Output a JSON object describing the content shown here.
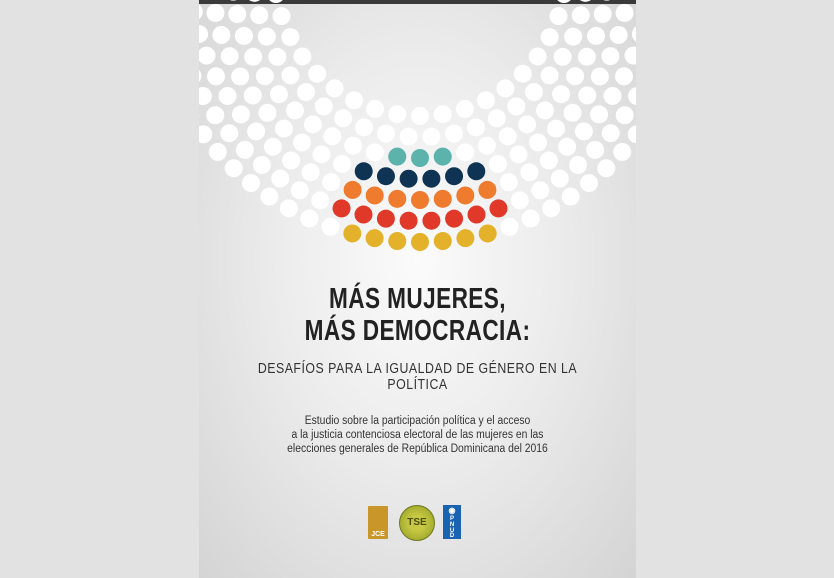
{
  "cover": {
    "title_line1": "MÁS MUJERES,",
    "title_line2": "MÁS DEMOCRACIA:",
    "subtitle": "DESAFÍOS PARA LA IGUALDAD DE GÉNERO EN LA POLÍTICA",
    "description": [
      "Estudio sobre la participación política y el acceso",
      "a la justicia contenciosa electoral de las mujeres en las",
      "elecciones generales de República Dominicana del 2016"
    ]
  },
  "logos": {
    "jce": "JCE",
    "tse": "TSE",
    "pnud": [
      "P",
      "N",
      "U",
      "D"
    ]
  },
  "colors": {
    "rings": [
      "#e3b22a",
      "#e0392a",
      "#ee7b2e",
      "#0f3352",
      "#5bb3ab"
    ],
    "white_dot": "#ffffff"
  }
}
